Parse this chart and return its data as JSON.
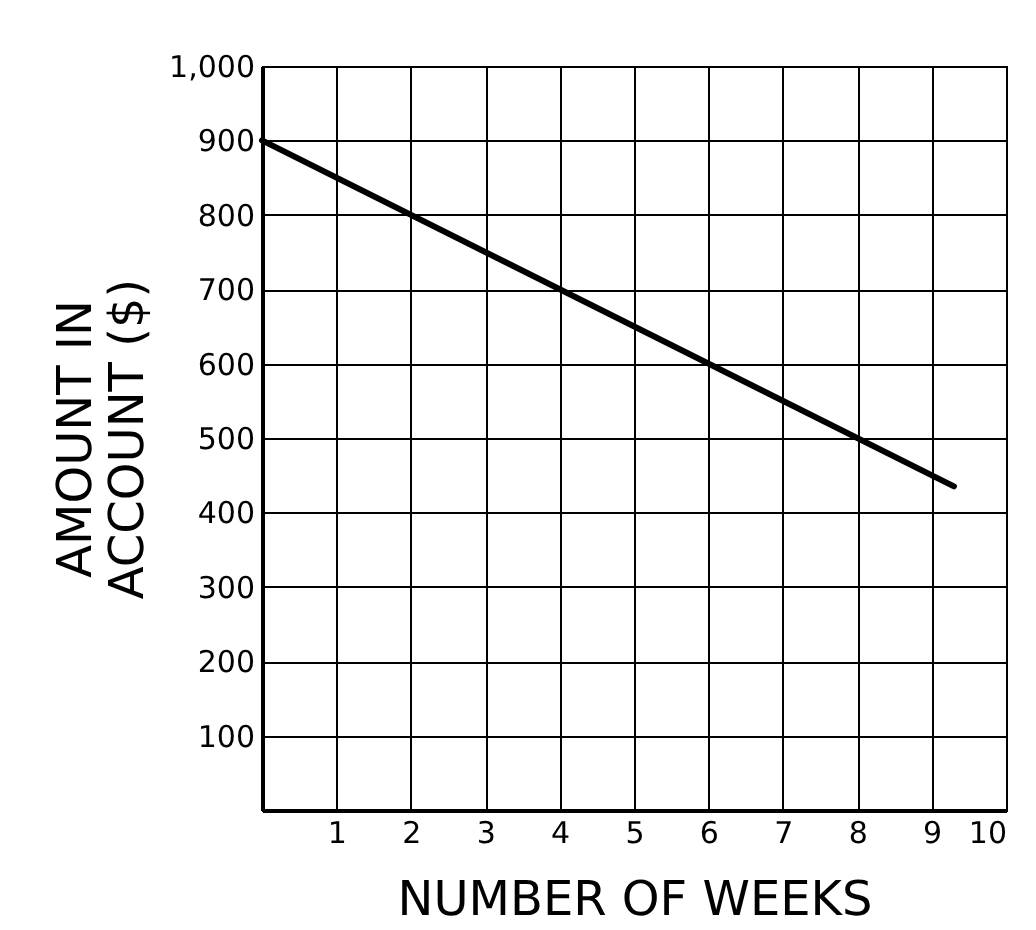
{
  "chart_data": {
    "type": "line",
    "xlabel": "NUMBER OF WEEKS",
    "ylabel": "AMOUNT IN ACCOUNT ($)",
    "x": [
      0,
      9.3
    ],
    "series": [
      {
        "color": "#000000",
        "values": [
          900,
          435
        ]
      }
    ],
    "xlim": [
      0,
      10
    ],
    "xticks": [
      1,
      2,
      3,
      4,
      5,
      6,
      7,
      8,
      9,
      10
    ],
    "ylim": [
      0,
      1000
    ],
    "yticks": [
      100,
      200,
      300,
      400,
      500,
      600,
      700,
      800,
      900,
      {
        "value": 1000,
        "label": "1,000"
      }
    ],
    "grid": true,
    "marker": "none",
    "line_style": "solid",
    "legend": false
  }
}
